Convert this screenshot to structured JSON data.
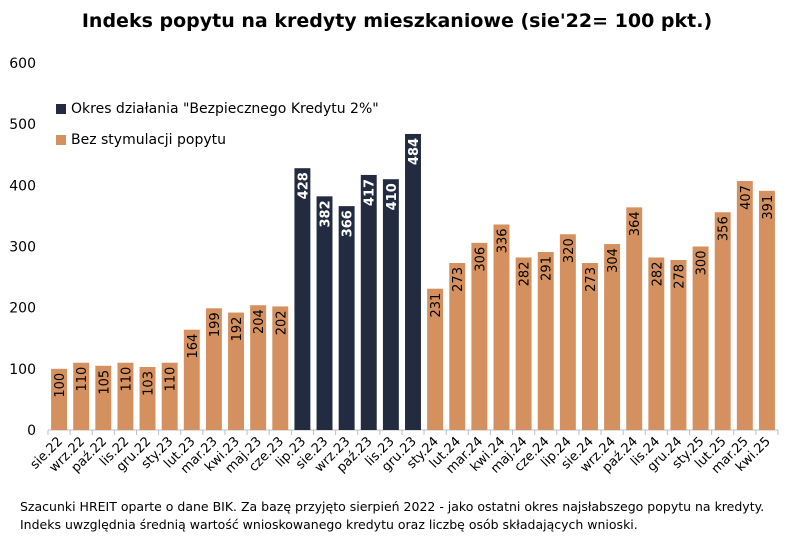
{
  "chart_data": {
    "type": "bar",
    "title": "Indeks popytu na kredyty mieszkaniowe (sie'22= 100 pkt.)",
    "xlabel": "",
    "ylabel": "",
    "ylim": [
      0,
      600
    ],
    "yticks": [
      0,
      100,
      200,
      300,
      400,
      500,
      600
    ],
    "grid": false,
    "legend_position": "top-left",
    "colors": {
      "Bez stymulacji popytu": "#D4905F",
      "Okres działania \"Bezpiecznego Kredytu 2%\"": "#222B3F"
    },
    "categories": [
      "sie.22",
      "wrz.22",
      "paź.22",
      "lis.22",
      "gru.22",
      "sty.23",
      "lut.23",
      "mar.23",
      "kwi.23",
      "maj.23",
      "cze.23",
      "lip.23",
      "sie.23",
      "wrz.23",
      "paź.23",
      "lis.23",
      "gru.23",
      "sty.24",
      "lut.24",
      "mar.24",
      "kwi.24",
      "maj.24",
      "cze.24",
      "lip.24",
      "sie.24",
      "wrz.24",
      "paź.24",
      "lis.24",
      "gru.24",
      "sty.25",
      "lut.25",
      "mar.25",
      "kwi.25"
    ],
    "values": [
      100,
      110,
      105,
      110,
      103,
      110,
      164,
      199,
      192,
      204,
      202,
      428,
      382,
      366,
      417,
      410,
      484,
      231,
      273,
      306,
      336,
      282,
      291,
      320,
      273,
      304,
      364,
      282,
      278,
      300,
      356,
      407,
      391
    ],
    "series_index": [
      1,
      1,
      1,
      1,
      1,
      1,
      1,
      1,
      1,
      1,
      1,
      0,
      0,
      0,
      0,
      0,
      0,
      1,
      1,
      1,
      1,
      1,
      1,
      1,
      1,
      1,
      1,
      1,
      1,
      1,
      1,
      1,
      1
    ],
    "series": [
      {
        "name": "Okres działania \"Bezpiecznego Kredytu 2%\"",
        "color": "#222B3F"
      },
      {
        "name": "Bez stymulacji popytu",
        "color": "#D4905F"
      }
    ]
  },
  "footnote": {
    "line1": "Szacunki HREIT oparte o dane BIK. Za bazę przyjęto sierpień 2022 - jako ostatni okres najsłabszego popytu na kredyty.",
    "line2": "Indeks uwzględnia średnią wartość wnioskowanego kredytu oraz liczbę osób składających wnioski."
  }
}
